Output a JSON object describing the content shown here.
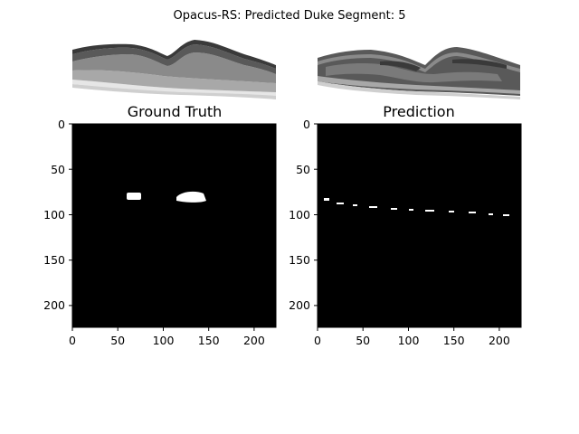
{
  "figure": {
    "suptitle": "Opacus-RS: Predicted Duke Segment: 5"
  },
  "panels": [
    {
      "title": "Ground Truth",
      "xticks": [
        "0",
        "50",
        "100",
        "150",
        "200"
      ],
      "yticks": [
        "0",
        "50",
        "100",
        "150",
        "200"
      ],
      "image_extent": [
        0,
        224
      ]
    },
    {
      "title": "Prediction",
      "xticks": [
        "0",
        "50",
        "100",
        "150",
        "200"
      ],
      "yticks": [
        "0",
        "50",
        "100",
        "150",
        "200"
      ],
      "image_extent": [
        0,
        224
      ]
    }
  ],
  "colors": {
    "background": "#000000",
    "layer_dark": "#3a3a3a",
    "layer_mid": "#595959",
    "layer_light": "#8a8a8a",
    "layer_lighter": "#a8a8a8",
    "layer_bright": "#cfcfcf",
    "fluid": "#ffffff"
  }
}
